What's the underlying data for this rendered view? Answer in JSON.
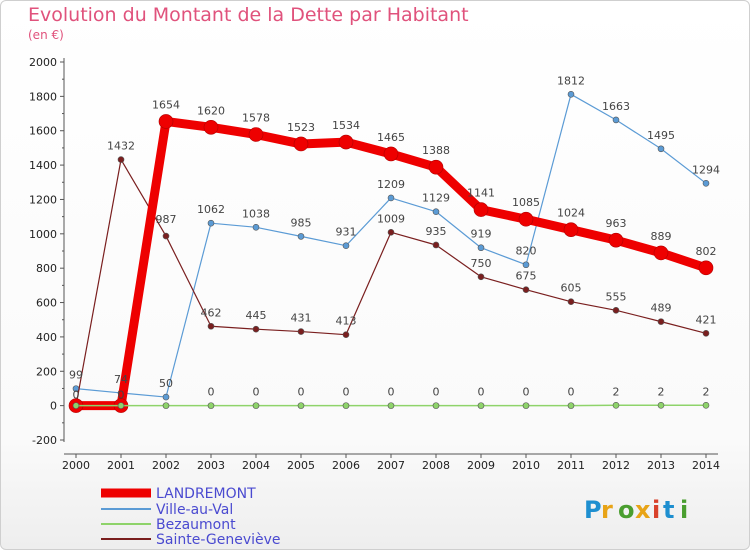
{
  "title": "Evolution du Montant de la Dette par Habitant",
  "subtitle": "(en €)",
  "logo_text": "Proxiti",
  "colors": {
    "title": "#e0527c",
    "axis": "#555555",
    "tick_text": "#222222",
    "value_label": "#444444",
    "legend_text": "#4a4ad0"
  },
  "chart_data": {
    "type": "line",
    "categories": [
      "2000",
      "2001",
      "2002",
      "2003",
      "2004",
      "2005",
      "2006",
      "2007",
      "2008",
      "2009",
      "2010",
      "2011",
      "2012",
      "2013",
      "2014"
    ],
    "ylim": [
      -200,
      2000
    ],
    "yticks": [
      -200,
      0,
      200,
      400,
      600,
      800,
      1000,
      1200,
      1400,
      1600,
      1800,
      2000
    ],
    "grid": false,
    "legend_position": "bottom-left",
    "series": [
      {
        "name": "LANDREMONT",
        "color": "#ee0000",
        "width": 9,
        "marker": 7,
        "values": [
          0,
          0,
          1654,
          1620,
          1578,
          1523,
          1534,
          1465,
          1388,
          1141,
          1085,
          1024,
          963,
          889,
          802
        ]
      },
      {
        "name": "Ville-au-Val",
        "color": "#5b9bd5",
        "width": 1.2,
        "marker": 3,
        "values": [
          99,
          74,
          50,
          1062,
          1038,
          985,
          931,
          1209,
          1129,
          919,
          820,
          1812,
          1663,
          1495,
          1294
        ]
      },
      {
        "name": "Bezaumont",
        "color": "#8ed36a",
        "width": 1.5,
        "marker": 3,
        "values": [
          0,
          0,
          0,
          0,
          0,
          0,
          0,
          0,
          0,
          0,
          0,
          0,
          2,
          2,
          2
        ]
      },
      {
        "name": "Sainte-Geneviève",
        "color": "#7a1f1f",
        "width": 1.2,
        "marker": 3,
        "values": [
          0,
          1432,
          987,
          462,
          445,
          431,
          413,
          1009,
          935,
          750,
          675,
          605,
          555,
          489,
          421
        ]
      }
    ]
  }
}
